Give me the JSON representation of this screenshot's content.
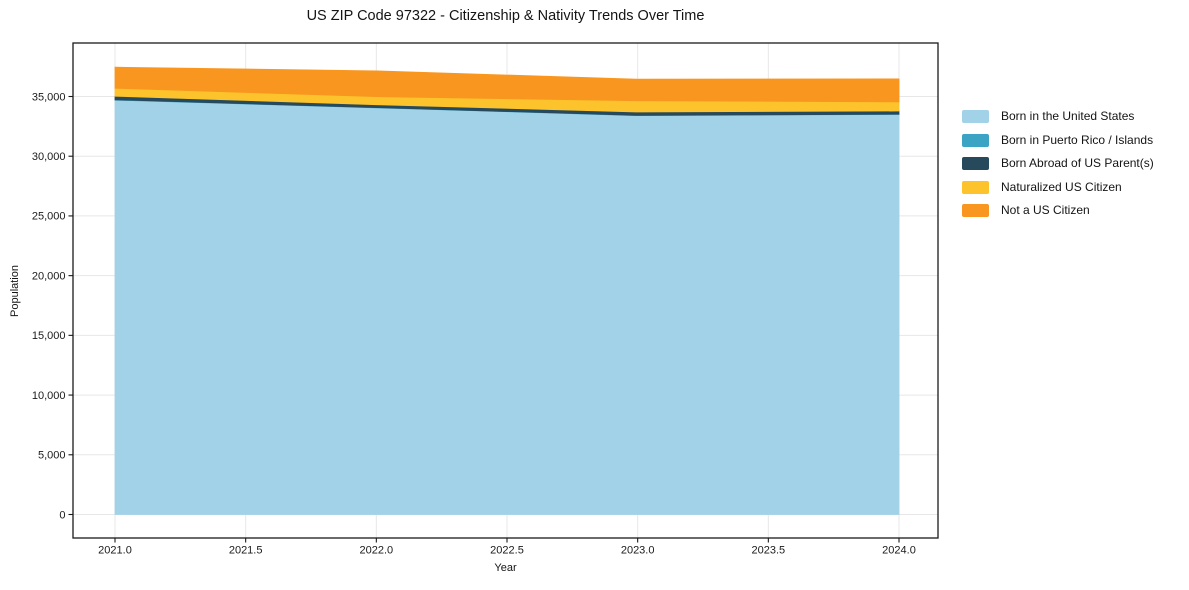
{
  "chart_data": {
    "type": "area",
    "stacked": true,
    "title": "US ZIP Code 97322 - Citizenship & Nativity Trends Over Time",
    "xlabel": "Year",
    "ylabel": "Population",
    "x": [
      2021,
      2022,
      2023,
      2024
    ],
    "series": [
      {
        "name": "Born in the United States",
        "color": "#a2d2e8",
        "values": [
          34700,
          34050,
          33400,
          33500
        ]
      },
      {
        "name": "Born in Puerto Rico / Islands",
        "color": "#3ba3c4",
        "values": [
          25,
          20,
          15,
          20
        ]
      },
      {
        "name": "Born Abroad of US Parent(s)",
        "color": "#27495c",
        "values": [
          300,
          245,
          285,
          265
        ]
      },
      {
        "name": "Naturalized US Citizen",
        "color": "#fcc32c",
        "values": [
          670,
          680,
          950,
          760
        ]
      },
      {
        "name": "Not a US Citizen",
        "color": "#f8961f",
        "values": [
          1760,
          2150,
          1800,
          1930
        ]
      }
    ],
    "x_tick_values": [
      2021.0,
      2021.5,
      2022.0,
      2022.5,
      2023.0,
      2023.5,
      2024.0
    ],
    "x_tick_labels": [
      "2021.0",
      "2021.5",
      "2022.0",
      "2022.5",
      "2023.0",
      "2023.5",
      "2024.0"
    ],
    "y_tick_values": [
      0,
      5000,
      10000,
      15000,
      20000,
      25000,
      30000,
      35000
    ],
    "y_tick_labels": [
      "0",
      "5,000",
      "10,000",
      "15,000",
      "20,000",
      "25,000",
      "30,000",
      "35,000"
    ],
    "xlim": [
      2020.84,
      2024.15
    ],
    "ylim": [
      -1965,
      39480
    ],
    "grid": true,
    "legend_position": "right",
    "axis_color": "#1a1a1a",
    "grid_color": "#e7e7e7",
    "background_color": "#ffffff"
  }
}
